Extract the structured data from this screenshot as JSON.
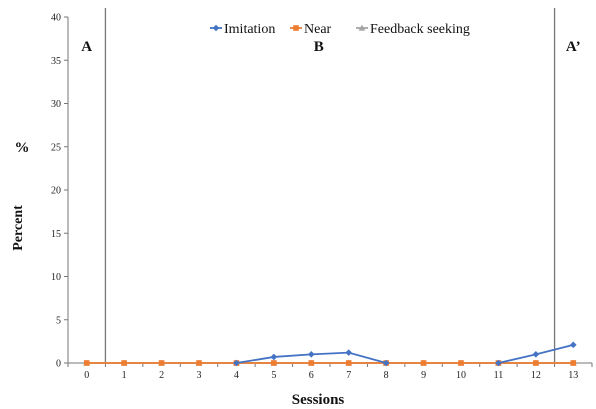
{
  "chart_data": {
    "type": "line",
    "title": "",
    "xlabel": "Sessions",
    "ylabel": "Percent",
    "ylabel_symbol": "%",
    "x": [
      0,
      1,
      2,
      3,
      4,
      5,
      6,
      7,
      8,
      9,
      10,
      11,
      12,
      13
    ],
    "x_tick_labels": [
      "0",
      "1",
      "2",
      "3",
      "4",
      "5",
      "6",
      "7",
      "8",
      "9",
      "10",
      "11",
      "12",
      "13"
    ],
    "y_ticks": [
      0,
      5,
      10,
      15,
      20,
      25,
      30,
      35,
      40
    ],
    "ylim": [
      0,
      40
    ],
    "xlim": [
      -0.5,
      13.5
    ],
    "grid": false,
    "legend_position": "top",
    "series": [
      {
        "name": "Imitation",
        "color": "#4472c4",
        "marker": "diamond",
        "values": [
          null,
          null,
          null,
          null,
          0,
          0.7,
          1.0,
          1.2,
          0,
          null,
          null,
          0,
          1.0,
          2.1
        ]
      },
      {
        "name": "Near",
        "color": "#ed7d31",
        "marker": "square",
        "values": [
          0,
          0,
          0,
          0,
          0,
          0,
          0,
          0,
          0,
          0,
          0,
          0,
          0,
          0
        ]
      },
      {
        "name": "Feedback seeking",
        "color": "#a5a5a5",
        "marker": "triangle",
        "values": [
          0,
          0,
          0,
          0,
          0,
          0,
          0,
          0,
          0,
          0,
          0,
          0,
          0,
          0
        ]
      }
    ],
    "phase_lines": [
      0.5,
      12.5
    ],
    "phase_labels": [
      {
        "label": "A",
        "x": 0
      },
      {
        "label": "B",
        "x": 6.2
      },
      {
        "label": "A’",
        "x": 13
      }
    ]
  }
}
